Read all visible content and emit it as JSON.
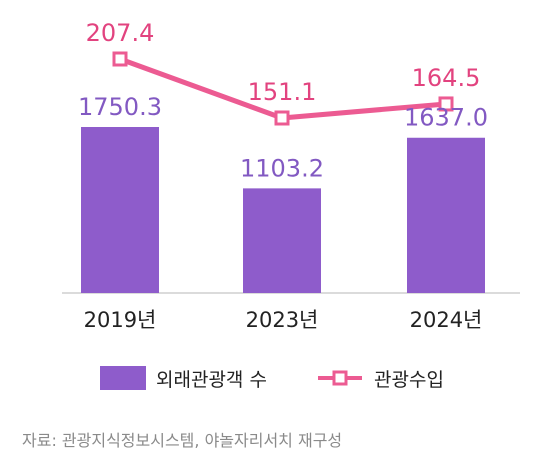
{
  "chart_data": {
    "type": "bar",
    "categories": [
      "2019년",
      "2023년",
      "2024년"
    ],
    "series": [
      {
        "name": "외래관광객 수",
        "type": "bar",
        "values": [
          1750.3,
          1103.2,
          1637.0
        ],
        "labels": [
          "1750.3",
          "1103.2",
          "1637.0"
        ],
        "color": "#8e5ccb"
      },
      {
        "name": "관광수입",
        "type": "line",
        "values": [
          207.4,
          151.1,
          164.5
        ],
        "labels": [
          "207.4",
          "151.1",
          "164.5"
        ],
        "color": "#ec5b92"
      }
    ],
    "legend_position": "bottom",
    "grid": false,
    "source": "자료: 관광지식정보시스템, 야놀자리서치 재구성"
  },
  "colors": {
    "bar": "#8e5ccb",
    "bar_label": "#8259c2",
    "line": "#ec5b92",
    "line_label": "#e2437f",
    "axis": "#cfcfcf",
    "text": "#222222",
    "source": "#8a8a8a"
  }
}
